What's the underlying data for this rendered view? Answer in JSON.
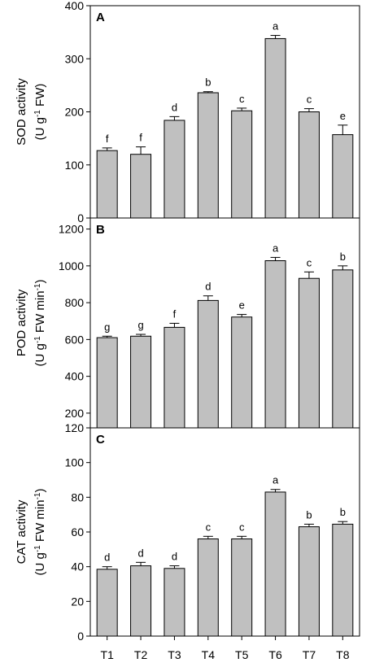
{
  "chart_data": [
    {
      "type": "bar",
      "panel": "A",
      "categories": [
        "T1",
        "T2",
        "T3",
        "T4",
        "T5",
        "T6",
        "T7",
        "T8"
      ],
      "values": [
        127,
        120,
        184,
        236,
        202,
        338,
        200,
        157
      ],
      "errors": [
        5,
        14,
        7,
        2,
        5,
        6,
        6,
        18
      ],
      "significance": [
        "f",
        "f",
        "d",
        "b",
        "c",
        "a",
        "c",
        "e"
      ],
      "ylabel_line1": "SOD activity",
      "ylabel_line2": "(U g-1 FW)",
      "ylim": [
        0,
        400
      ],
      "yticks": [
        0,
        100,
        200,
        300,
        400
      ],
      "bar_color": "#c0c0c0"
    },
    {
      "type": "bar",
      "panel": "B",
      "categories": [
        "T1",
        "T2",
        "T3",
        "T4",
        "T5",
        "T6",
        "T7",
        "T8"
      ],
      "values": [
        610,
        618,
        666,
        812,
        722,
        1028,
        932,
        978
      ],
      "errors": [
        8,
        10,
        22,
        25,
        14,
        18,
        35,
        22
      ],
      "significance": [
        "g",
        "g",
        "f",
        "d",
        "e",
        "a",
        "c",
        "b"
      ],
      "ylabel_line1": "POD activity",
      "ylabel_line2": "(U g-1 FW min-1)",
      "ylim": [
        120,
        1260
      ],
      "yticks": [
        120,
        200,
        400,
        600,
        800,
        1000,
        1200
      ],
      "bar_color": "#c0c0c0"
    },
    {
      "type": "bar",
      "panel": "C",
      "categories": [
        "T1",
        "T2",
        "T3",
        "T4",
        "T5",
        "T6",
        "T7",
        "T8"
      ],
      "values": [
        38.5,
        40.5,
        39,
        56,
        56,
        83,
        63,
        64.5
      ],
      "errors": [
        1.5,
        2,
        1.5,
        1.5,
        1.5,
        1.5,
        1.5,
        1.5
      ],
      "significance": [
        "d",
        "d",
        "d",
        "c",
        "c",
        "a",
        "b",
        "b"
      ],
      "ylabel_line1": "CAT activity",
      "ylabel_line2": "(U g-1 FW min-1)",
      "ylim": [
        0,
        120
      ],
      "yticks": [
        0,
        20,
        40,
        60,
        80,
        100
      ],
      "bar_color": "#c0c0c0"
    }
  ]
}
